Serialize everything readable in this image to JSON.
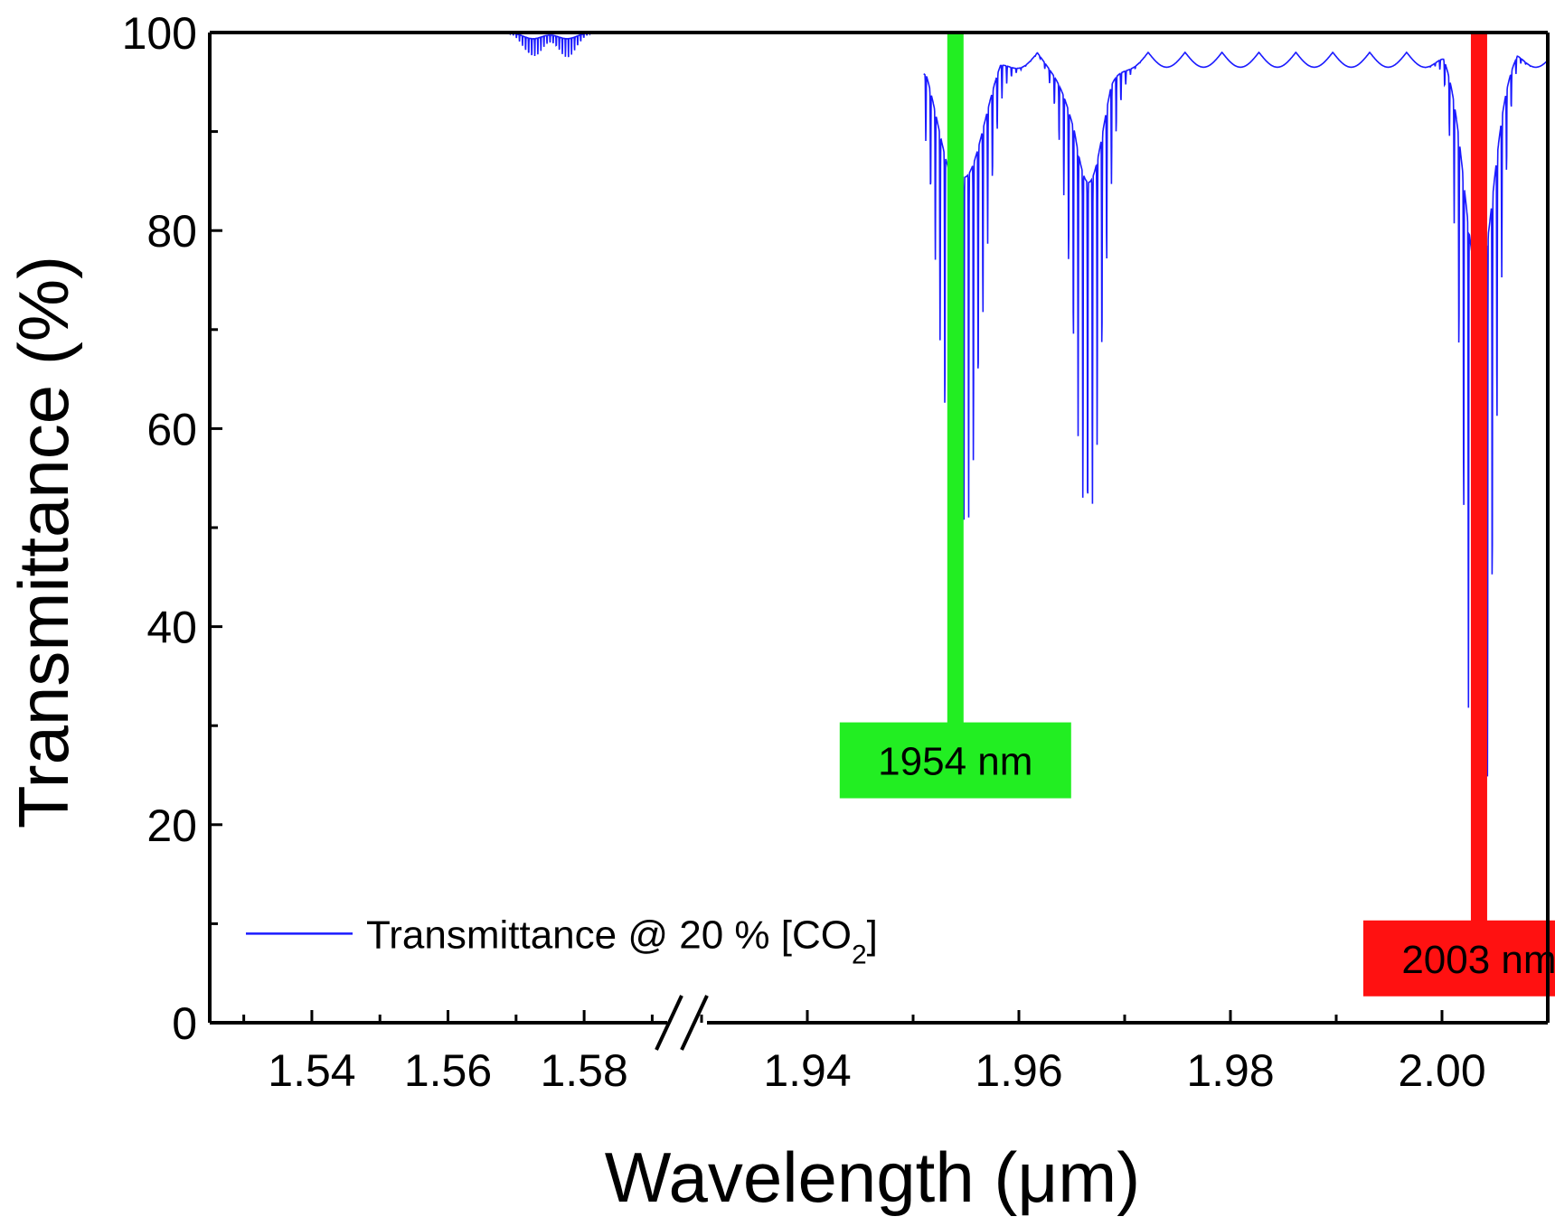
{
  "chart_data": {
    "type": "line",
    "xlabel": "Wavelength (μm)",
    "ylabel": "Transmittance (%)",
    "ylim": [
      0,
      100
    ],
    "y_ticks": [
      0,
      20,
      40,
      60,
      80,
      100
    ],
    "x_axis_broken": true,
    "x_segments": [
      {
        "xlim": [
          1.525,
          1.593
        ],
        "ticks": [
          1.54,
          1.56,
          1.58
        ],
        "tick_labels": [
          "1.54",
          "1.56",
          "1.58"
        ]
      },
      {
        "xlim": [
          1.93,
          2.01
        ],
        "ticks": [
          1.94,
          1.96,
          1.98,
          2.0
        ],
        "tick_labels": [
          "1.94",
          "1.96",
          "1.98",
          "2.00"
        ]
      }
    ],
    "legend": {
      "position": "bottom-left",
      "label_prefix": "Transmittance @ 20 % [CO",
      "label_sub": "2",
      "label_suffix": "]"
    },
    "series": [
      {
        "color": "#1a1aff",
        "absorption_bands": [
          {
            "center": 1.5725,
            "min_transmittance": 97.5,
            "width": 0.002
          },
          {
            "center": 1.5775,
            "min_transmittance": 97.5,
            "width": 0.002
          },
          {
            "center": 1.9545,
            "min_transmittance": 49.0,
            "width": 0.0025
          },
          {
            "center": 1.9665,
            "min_transmittance": 53.0,
            "width": 0.002
          },
          {
            "center": 2.0035,
            "min_transmittance": 11.5,
            "width": 0.0018
          }
        ],
        "line_spacing_um": 0.00045,
        "data_start_um": 1.951
      }
    ],
    "markers": [
      {
        "x": 1.954,
        "label": "1954 nm",
        "color": "#22ee22",
        "label_y": 26.5
      },
      {
        "x": 2.0035,
        "label": "2003 nm",
        "color": "#ff1111",
        "label_y": 6.5
      }
    ]
  }
}
